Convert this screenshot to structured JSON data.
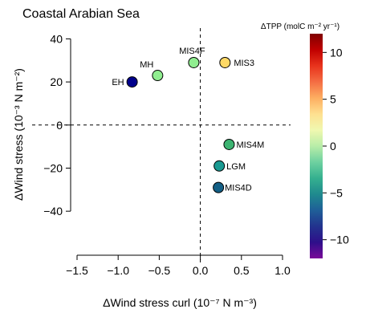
{
  "chart_data": {
    "type": "scatter",
    "title": "Coastal Arabian Sea",
    "xlabel": "ΔWind stress curl (10⁻⁷ N m⁻³)",
    "ylabel": "ΔWind stress (10⁻³ N m⁻²)",
    "xlim": [
      -1.5,
      1.0
    ],
    "ylim": [
      -50,
      45
    ],
    "xticks": [
      -1.5,
      -1.0,
      -0.5,
      0.0,
      0.5,
      1.0
    ],
    "xtick_labels": [
      "−1.5",
      "−1.0",
      "−0.5",
      "0.0",
      "0.5",
      "1.0"
    ],
    "yticks": [
      -40,
      -20,
      0,
      20,
      40
    ],
    "ytick_labels": [
      "−40",
      "−20",
      "0",
      "20",
      "40"
    ],
    "reference_lines": {
      "x": 0,
      "y": 0,
      "style": "dashed"
    },
    "grid": false,
    "points": [
      {
        "label": "EH",
        "x": -0.83,
        "y": 20,
        "value": -10,
        "color": "#00008B"
      },
      {
        "label": "MH",
        "x": -0.52,
        "y": 23,
        "value": -1.5,
        "color": "#90EE90"
      },
      {
        "label": "MIS4F",
        "x": -0.08,
        "y": 29,
        "value": -1.5,
        "color": "#90EE90"
      },
      {
        "label": "MIS3",
        "x": 0.3,
        "y": 29,
        "value": 3.5,
        "color": "#FFD966"
      },
      {
        "label": "MIS4M",
        "x": 0.35,
        "y": -9,
        "value": -3.5,
        "color": "#3CB371"
      },
      {
        "label": "LGM",
        "x": 0.23,
        "y": -19,
        "value": -5.5,
        "color": "#1A9A92"
      },
      {
        "label": "MIS4D",
        "x": 0.22,
        "y": -29,
        "value": -7.5,
        "color": "#135F85"
      }
    ],
    "colorbar": {
      "title": "ΔTPP (molC  m⁻² yr⁻¹)",
      "range": [
        -12,
        12
      ],
      "ticks": [
        10,
        5,
        0,
        -5,
        -10
      ],
      "tick_labels": [
        "10",
        "5",
        "0",
        "−5",
        "−10"
      ],
      "colors_top_to_bottom": [
        "#800000",
        "#C00000",
        "#E8331C",
        "#F46D43",
        "#FDAE61",
        "#FEE090",
        "#F0F8B0",
        "#B8EDA8",
        "#6ED1A0",
        "#35B08F",
        "#1F8A8E",
        "#1F5F98",
        "#22338E",
        "#2E0F8A",
        "#7A0A99"
      ]
    },
    "legend": "none"
  }
}
